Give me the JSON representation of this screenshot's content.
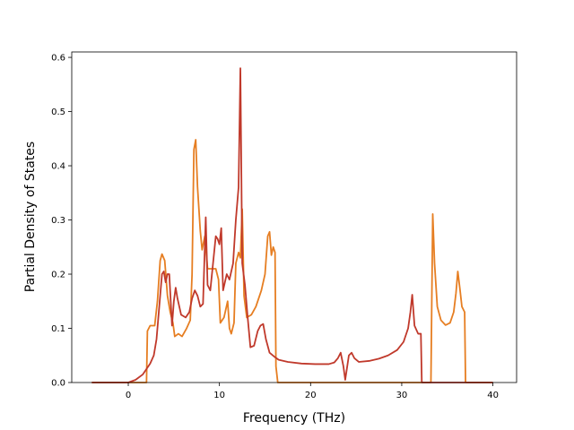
{
  "chart_data": {
    "type": "line",
    "title": "",
    "xlabel": "Frequency (THz)",
    "ylabel": "Partial Density of States",
    "xlim": [
      -6.2,
      42.6
    ],
    "ylim": [
      0,
      0.61
    ],
    "xticks": [
      0,
      10,
      20,
      30,
      40
    ],
    "yticks": [
      0.0,
      0.1,
      0.2,
      0.3,
      0.4,
      0.5,
      0.6
    ],
    "xtick_labels": [
      "0",
      "10",
      "20",
      "30",
      "40"
    ],
    "ytick_labels": [
      "0.0",
      "0.1",
      "0.2",
      "0.3",
      "0.4",
      "0.5",
      "0.6"
    ],
    "grid": false,
    "legend": "none",
    "series": [
      {
        "color": "#e67e22",
        "points": [
          [
            -4.0,
            0.0
          ],
          [
            0.0,
            0.0
          ],
          [
            2.0,
            0.0
          ],
          [
            2.1,
            0.095
          ],
          [
            2.4,
            0.105
          ],
          [
            2.9,
            0.105
          ],
          [
            3.2,
            0.15
          ],
          [
            3.5,
            0.225
          ],
          [
            3.7,
            0.237
          ],
          [
            4.0,
            0.225
          ],
          [
            4.3,
            0.16
          ],
          [
            4.6,
            0.13
          ],
          [
            4.9,
            0.11
          ],
          [
            5.1,
            0.085
          ],
          [
            5.5,
            0.09
          ],
          [
            5.9,
            0.085
          ],
          [
            6.4,
            0.1
          ],
          [
            6.8,
            0.115
          ],
          [
            7.0,
            0.2
          ],
          [
            7.2,
            0.43
          ],
          [
            7.4,
            0.448
          ],
          [
            7.6,
            0.36
          ],
          [
            7.9,
            0.28
          ],
          [
            8.1,
            0.245
          ],
          [
            8.4,
            0.27
          ],
          [
            8.7,
            0.21
          ],
          [
            9.1,
            0.21
          ],
          [
            9.6,
            0.21
          ],
          [
            9.9,
            0.19
          ],
          [
            10.1,
            0.11
          ],
          [
            10.5,
            0.12
          ],
          [
            10.9,
            0.15
          ],
          [
            11.1,
            0.1
          ],
          [
            11.3,
            0.09
          ],
          [
            11.6,
            0.11
          ],
          [
            11.8,
            0.22
          ],
          [
            12.1,
            0.24
          ],
          [
            12.3,
            0.23
          ],
          [
            12.5,
            0.32
          ],
          [
            12.7,
            0.16
          ],
          [
            13.0,
            0.12
          ],
          [
            13.5,
            0.125
          ],
          [
            14.0,
            0.14
          ],
          [
            14.6,
            0.17
          ],
          [
            15.0,
            0.2
          ],
          [
            15.3,
            0.27
          ],
          [
            15.5,
            0.278
          ],
          [
            15.7,
            0.235
          ],
          [
            15.9,
            0.25
          ],
          [
            16.1,
            0.24
          ],
          [
            16.2,
            0.03
          ],
          [
            16.4,
            0.0
          ],
          [
            20.0,
            0.0
          ],
          [
            30.0,
            0.0
          ],
          [
            33.2,
            0.0
          ],
          [
            33.4,
            0.311
          ],
          [
            33.6,
            0.22
          ],
          [
            33.9,
            0.14
          ],
          [
            34.3,
            0.115
          ],
          [
            34.8,
            0.106
          ],
          [
            35.3,
            0.11
          ],
          [
            35.7,
            0.13
          ],
          [
            35.95,
            0.165
          ],
          [
            36.15,
            0.205
          ],
          [
            36.4,
            0.17
          ],
          [
            36.6,
            0.14
          ],
          [
            36.9,
            0.13
          ],
          [
            37.0,
            0.0
          ],
          [
            40.0,
            0.0
          ]
        ]
      },
      {
        "color": "#c0392b",
        "points": [
          [
            -4.0,
            0.0
          ],
          [
            0.0,
            0.0
          ],
          [
            0.8,
            0.005
          ],
          [
            1.6,
            0.015
          ],
          [
            2.4,
            0.035
          ],
          [
            2.8,
            0.05
          ],
          [
            3.1,
            0.08
          ],
          [
            3.4,
            0.14
          ],
          [
            3.7,
            0.2
          ],
          [
            3.9,
            0.205
          ],
          [
            4.1,
            0.185
          ],
          [
            4.3,
            0.2
          ],
          [
            4.5,
            0.2
          ],
          [
            4.8,
            0.105
          ],
          [
            5.0,
            0.15
          ],
          [
            5.2,
            0.175
          ],
          [
            5.4,
            0.155
          ],
          [
            5.8,
            0.125
          ],
          [
            6.3,
            0.12
          ],
          [
            6.7,
            0.13
          ],
          [
            7.0,
            0.155
          ],
          [
            7.3,
            0.17
          ],
          [
            7.6,
            0.16
          ],
          [
            7.9,
            0.14
          ],
          [
            8.2,
            0.145
          ],
          [
            8.5,
            0.305
          ],
          [
            8.7,
            0.18
          ],
          [
            9.0,
            0.17
          ],
          [
            9.3,
            0.22
          ],
          [
            9.6,
            0.27
          ],
          [
            9.8,
            0.265
          ],
          [
            10.0,
            0.255
          ],
          [
            10.2,
            0.285
          ],
          [
            10.4,
            0.17
          ],
          [
            10.8,
            0.2
          ],
          [
            11.1,
            0.19
          ],
          [
            11.5,
            0.22
          ],
          [
            11.8,
            0.3
          ],
          [
            12.1,
            0.36
          ],
          [
            12.3,
            0.58
          ],
          [
            12.5,
            0.22
          ],
          [
            12.8,
            0.18
          ],
          [
            13.1,
            0.12
          ],
          [
            13.4,
            0.065
          ],
          [
            13.8,
            0.068
          ],
          [
            14.2,
            0.095
          ],
          [
            14.5,
            0.105
          ],
          [
            14.8,
            0.108
          ],
          [
            15.1,
            0.08
          ],
          [
            15.5,
            0.055
          ],
          [
            16.0,
            0.048
          ],
          [
            16.5,
            0.042
          ],
          [
            17.5,
            0.038
          ],
          [
            19.0,
            0.035
          ],
          [
            20.5,
            0.034
          ],
          [
            22.0,
            0.034
          ],
          [
            22.6,
            0.037
          ],
          [
            23.0,
            0.045
          ],
          [
            23.3,
            0.055
          ],
          [
            23.6,
            0.03
          ],
          [
            23.8,
            0.005
          ],
          [
            24.2,
            0.05
          ],
          [
            24.5,
            0.055
          ],
          [
            24.8,
            0.045
          ],
          [
            25.3,
            0.038
          ],
          [
            26.5,
            0.04
          ],
          [
            27.5,
            0.044
          ],
          [
            28.5,
            0.05
          ],
          [
            29.5,
            0.06
          ],
          [
            30.2,
            0.075
          ],
          [
            30.7,
            0.1
          ],
          [
            30.95,
            0.13
          ],
          [
            31.15,
            0.162
          ],
          [
            31.4,
            0.105
          ],
          [
            31.8,
            0.09
          ],
          [
            32.1,
            0.09
          ],
          [
            32.2,
            0.0
          ],
          [
            35.0,
            0.0
          ],
          [
            40.0,
            0.0
          ]
        ]
      }
    ]
  }
}
